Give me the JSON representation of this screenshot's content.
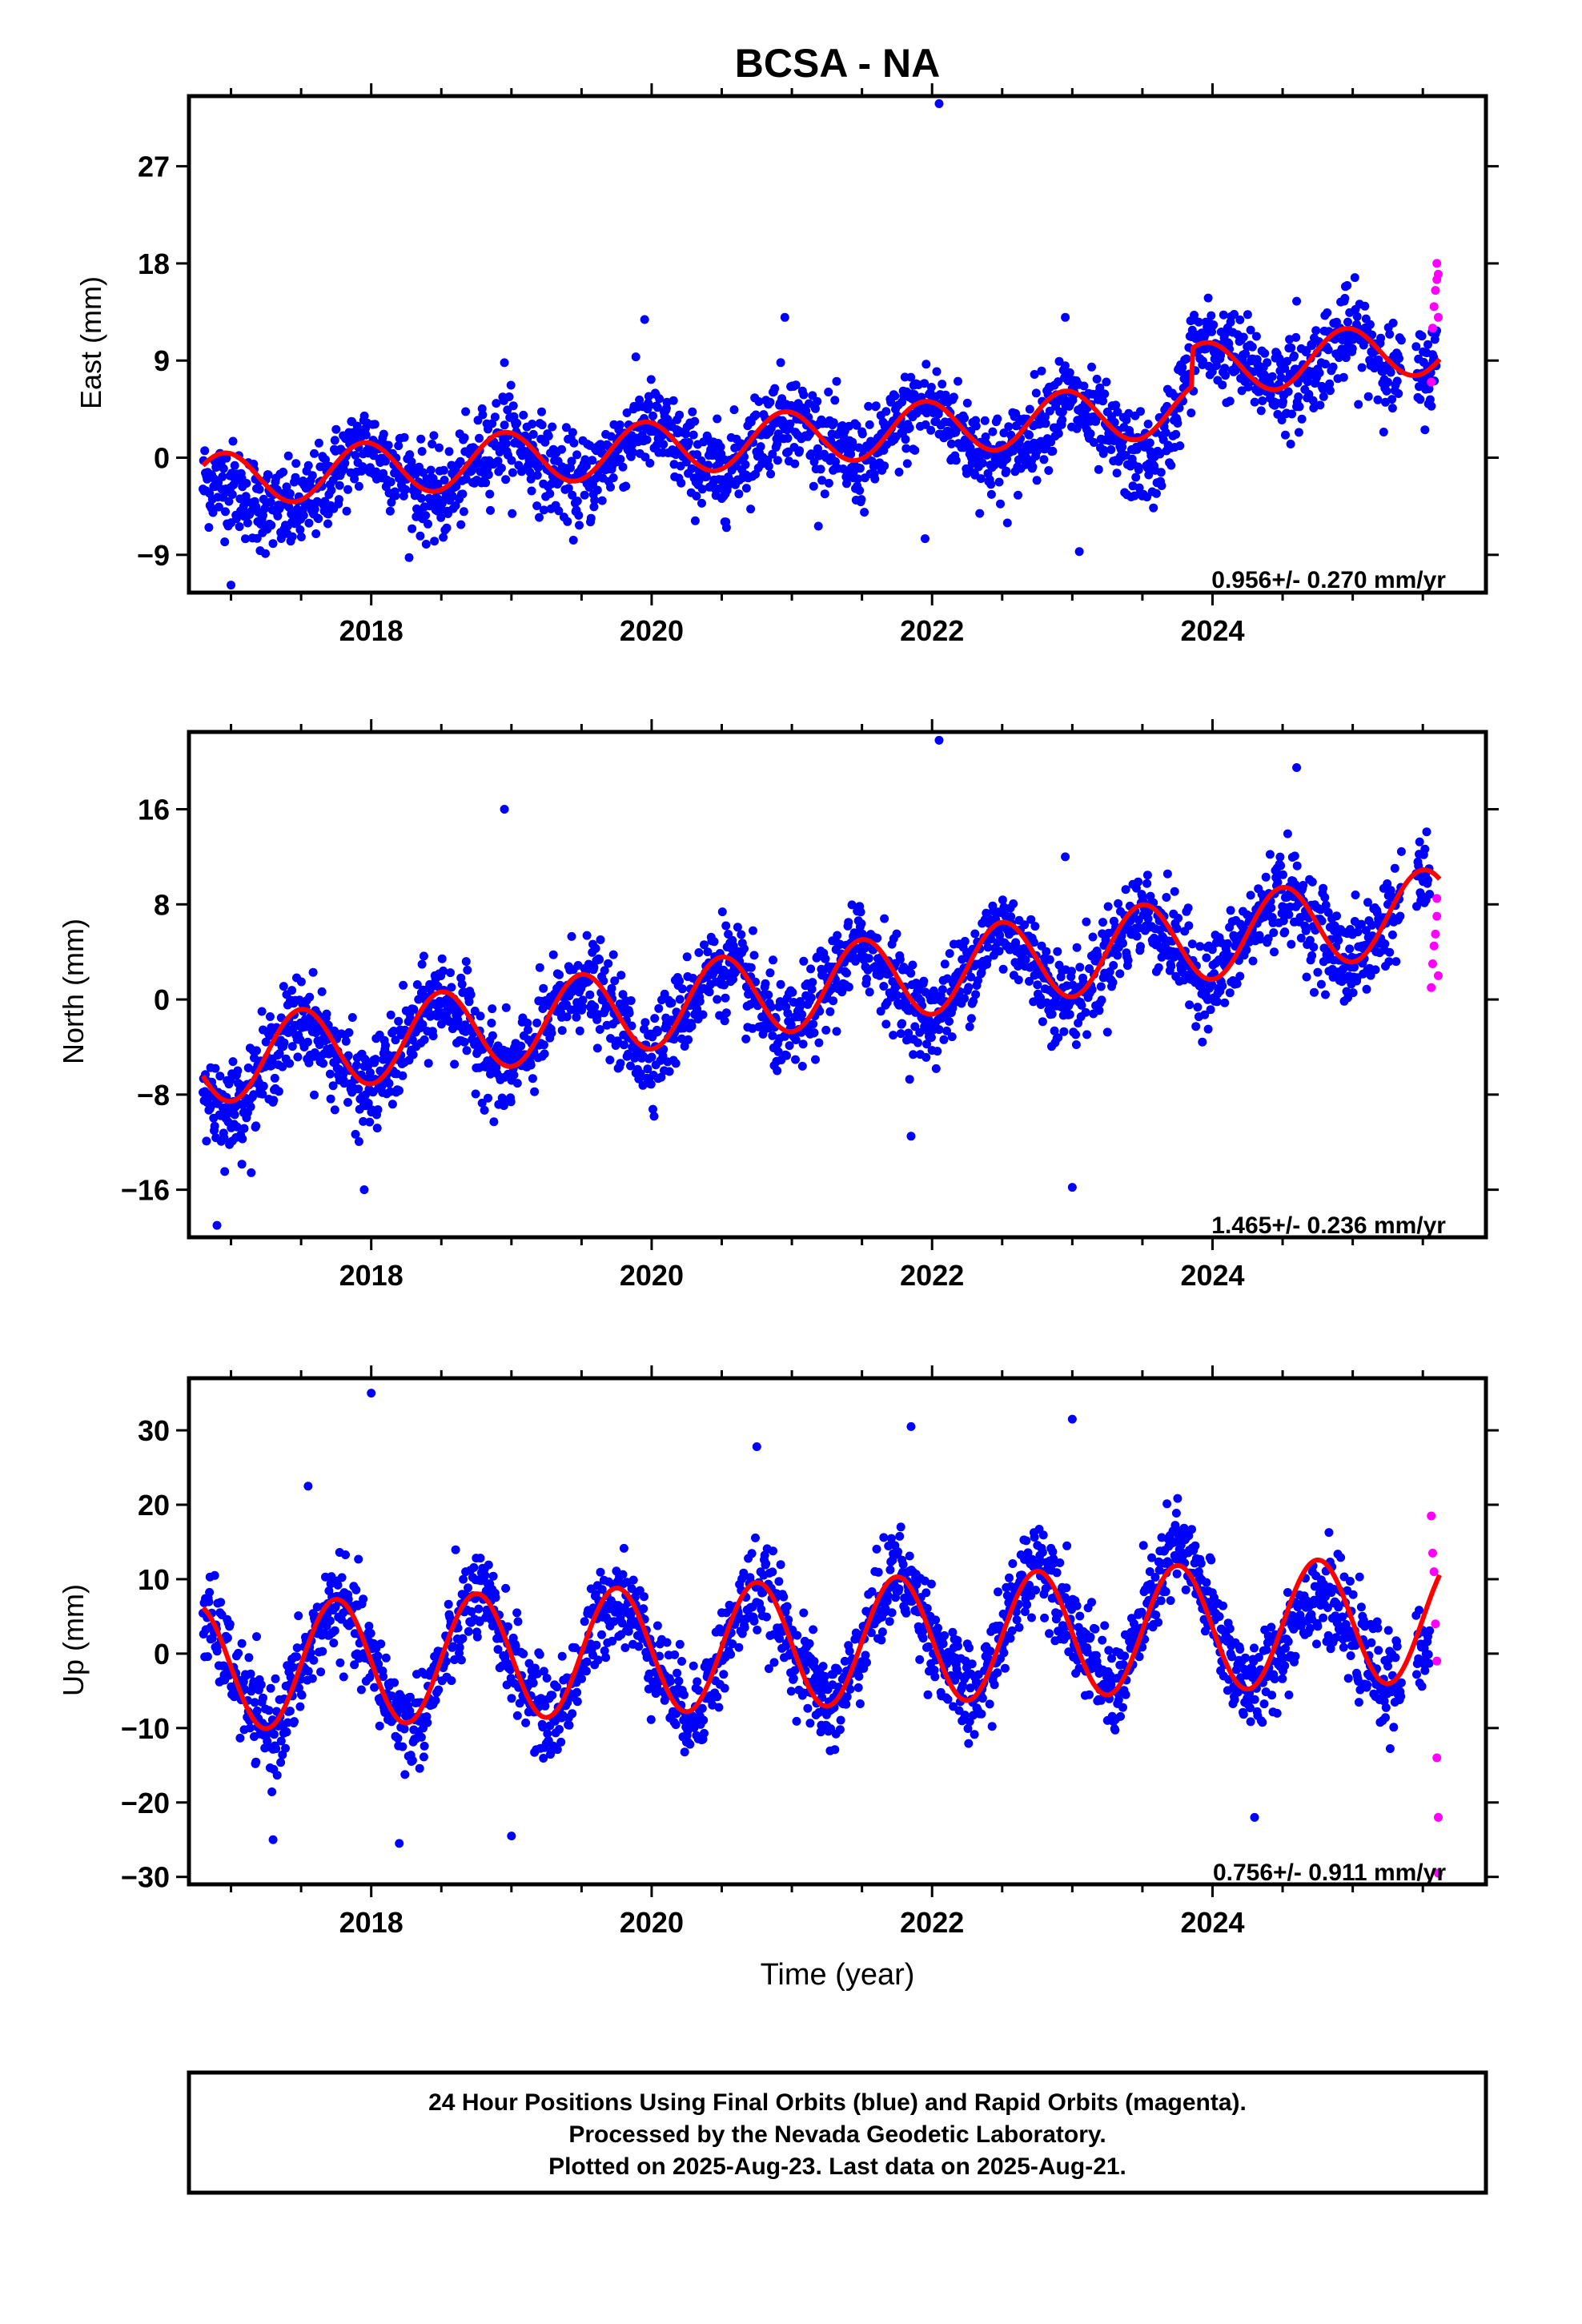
{
  "title": "BCSA - NA",
  "x_axis_label": "Time (year)",
  "caption": {
    "line1": "24 Hour Positions Using Final Orbits (blue) and Rapid Orbits (magenta).",
    "line2": "Processed by the Nevada Geodetic Laboratory.",
    "line3": "Plotted on 2025-Aug-23. Last data on 2025-Aug-21."
  },
  "colors": {
    "final_orbits": "#0000ff",
    "rapid_orbits": "#ff00ff",
    "model_fit": "#ff0000"
  },
  "chart_data": [
    {
      "type": "scatter",
      "component": "east",
      "ylabel": "East (mm)",
      "xlim": [
        2016.7,
        2025.95
      ],
      "ylim": [
        -12.5,
        33.5
      ],
      "yticks": [
        -9,
        0,
        9,
        18,
        27
      ],
      "xticks": [
        2018,
        2020,
        2022,
        2024
      ],
      "rate_label": "0.956+/- 0.270 mm/yr",
      "rate_mm_per_yr": 0.956,
      "rate_sigma": 0.27,
      "fit": {
        "offset": -2.3,
        "annual_amp": 2.5,
        "annual_peak": 0.95,
        "step_at": 2023.85,
        "step_mm": 3.5,
        "post_rate": 1.3
      },
      "final_orbit_envelope": [
        [
          2016.8,
          -3.5
        ],
        [
          2017.2,
          -6.5
        ],
        [
          2017.5,
          -5.5
        ],
        [
          2017.95,
          1.0
        ],
        [
          2018.5,
          -4.5
        ],
        [
          2018.95,
          2.0
        ],
        [
          2019.5,
          -3.0
        ],
        [
          2019.95,
          3.0
        ],
        [
          2020.5,
          -2.0
        ],
        [
          2020.95,
          4.0
        ],
        [
          2021.5,
          -1.0
        ],
        [
          2021.95,
          5.0
        ],
        [
          2022.5,
          -1.5
        ],
        [
          2022.95,
          5.0
        ],
        [
          2023.6,
          -3.5
        ],
        [
          2023.85,
          10.5
        ],
        [
          2024.3,
          9.0
        ],
        [
          2024.6,
          6.0
        ],
        [
          2024.95,
          11.0
        ],
        [
          2025.1,
          10.5
        ],
        [
          2025.3,
          7.0
        ],
        [
          2025.6,
          8.5
        ]
      ],
      "rapid_orbits": [
        {
          "x": 2025.56,
          "y": 7.0
        },
        {
          "x": 2025.57,
          "y": 12.0
        },
        {
          "x": 2025.58,
          "y": 14.0
        },
        {
          "x": 2025.59,
          "y": 15.5
        },
        {
          "x": 2025.6,
          "y": 16.5
        },
        {
          "x": 2025.6,
          "y": 18.0
        },
        {
          "x": 2025.61,
          "y": 17.0
        },
        {
          "x": 2025.61,
          "y": 13.0
        }
      ],
      "outliers": [
        {
          "x": 2022.05,
          "y": 32.8
        },
        {
          "x": 2019.95,
          "y": 12.8
        },
        {
          "x": 2020.95,
          "y": 13.0
        },
        {
          "x": 2022.95,
          "y": 13.0
        },
        {
          "x": 2018.95,
          "y": 8.8
        },
        {
          "x": 2017.0,
          "y": -11.8
        },
        {
          "x": 2021.95,
          "y": -7.5
        },
        {
          "x": 2023.05,
          "y": -8.7
        },
        {
          "x": 2024.6,
          "y": 14.5
        }
      ]
    },
    {
      "type": "scatter",
      "component": "north",
      "ylabel": "North (mm)",
      "xlim": [
        2016.7,
        2025.95
      ],
      "ylim": [
        -20,
        22.5
      ],
      "yticks": [
        -16,
        -8,
        0,
        8,
        16
      ],
      "xticks": [
        2018,
        2020,
        2022,
        2024
      ],
      "rate_label": "1.465+/- 0.236 mm/yr",
      "rate_mm_per_yr": 1.465,
      "rate_sigma": 0.236,
      "fit": {
        "offset": -5.5,
        "annual_amp": 3.5,
        "annual_peak": 0.5,
        "step_at": null,
        "step_mm": 0,
        "post_rate": 1.465
      },
      "final_orbit_envelope": [
        [
          2016.8,
          -8.0
        ],
        [
          2017.0,
          -10.0
        ],
        [
          2017.5,
          -2.0
        ],
        [
          2017.95,
          -8.5
        ],
        [
          2018.5,
          0.0
        ],
        [
          2018.95,
          -7.0
        ],
        [
          2019.5,
          1.5
        ],
        [
          2019.95,
          -5.0
        ],
        [
          2020.5,
          3.0
        ],
        [
          2020.95,
          -3.5
        ],
        [
          2021.5,
          4.5
        ],
        [
          2021.95,
          -2.5
        ],
        [
          2022.5,
          6.0
        ],
        [
          2022.95,
          -1.0
        ],
        [
          2023.5,
          7.0
        ],
        [
          2023.95,
          1.0
        ],
        [
          2024.5,
          9.0
        ],
        [
          2024.95,
          3.0
        ],
        [
          2025.55,
          10.5
        ]
      ],
      "rapid_orbits": [
        {
          "x": 2025.56,
          "y": 1.0
        },
        {
          "x": 2025.57,
          "y": 3.0
        },
        {
          "x": 2025.58,
          "y": 4.5
        },
        {
          "x": 2025.59,
          "y": 5.5
        },
        {
          "x": 2025.6,
          "y": 7.0
        },
        {
          "x": 2025.6,
          "y": 8.5
        },
        {
          "x": 2025.61,
          "y": 2.0
        }
      ],
      "outliers": [
        {
          "x": 2022.05,
          "y": 21.8
        },
        {
          "x": 2018.95,
          "y": 16.0
        },
        {
          "x": 2024.6,
          "y": 19.5
        },
        {
          "x": 2022.95,
          "y": 12.0
        },
        {
          "x": 2023.0,
          "y": -15.8
        },
        {
          "x": 2016.9,
          "y": -19.0
        },
        {
          "x": 2017.95,
          "y": -16.0
        },
        {
          "x": 2021.85,
          "y": -11.5
        }
      ]
    },
    {
      "type": "scatter",
      "component": "up",
      "ylabel": "Up (mm)",
      "xlim": [
        2016.7,
        2025.95
      ],
      "ylim": [
        -31,
        37
      ],
      "yticks": [
        -30,
        -20,
        -10,
        0,
        10,
        20,
        30
      ],
      "xticks": [
        2018,
        2020,
        2022,
        2024
      ],
      "rate_label": "0.756+/- 0.911 mm/yr",
      "rate_mm_per_yr": 0.756,
      "rate_sigma": 0.911,
      "fit": {
        "offset": -2.0,
        "annual_amp": 8.5,
        "annual_peak": 0.75,
        "step_at": null,
        "step_mm": 0,
        "post_rate": 0.756
      },
      "final_orbit_envelope": [
        [
          2016.8,
          5.0
        ],
        [
          2017.3,
          -12.0
        ],
        [
          2017.75,
          7.0
        ],
        [
          2018.3,
          -11.0
        ],
        [
          2018.75,
          8.0
        ],
        [
          2019.3,
          -10.0
        ],
        [
          2019.75,
          8.0
        ],
        [
          2020.3,
          -9.0
        ],
        [
          2020.75,
          9.0
        ],
        [
          2021.3,
          -8.0
        ],
        [
          2021.75,
          12.0
        ],
        [
          2022.3,
          -7.0
        ],
        [
          2022.75,
          15.0
        ],
        [
          2023.3,
          -5.0
        ],
        [
          2023.75,
          17.0
        ],
        [
          2024.3,
          -6.0
        ],
        [
          2024.75,
          5.0
        ],
        [
          2025.3,
          -5.0
        ],
        [
          2025.55,
          -3.0
        ]
      ],
      "rapid_orbits": [
        {
          "x": 2025.56,
          "y": 18.5
        },
        {
          "x": 2025.57,
          "y": 13.5
        },
        {
          "x": 2025.58,
          "y": 11.0
        },
        {
          "x": 2025.59,
          "y": 4.0
        },
        {
          "x": 2025.6,
          "y": -1.0
        },
        {
          "x": 2025.6,
          "y": -14.0
        },
        {
          "x": 2025.61,
          "y": -22.0
        },
        {
          "x": 2025.61,
          "y": -29.5
        }
      ],
      "outliers": [
        {
          "x": 2018.0,
          "y": 35.0
        },
        {
          "x": 2017.55,
          "y": 22.5
        },
        {
          "x": 2020.75,
          "y": 27.8
        },
        {
          "x": 2023.0,
          "y": 31.5
        },
        {
          "x": 2021.85,
          "y": 30.5
        },
        {
          "x": 2019.0,
          "y": -24.5
        },
        {
          "x": 2018.2,
          "y": -25.5
        },
        {
          "x": 2017.3,
          "y": -25.0
        },
        {
          "x": 2024.3,
          "y": -22.0
        }
      ]
    }
  ]
}
